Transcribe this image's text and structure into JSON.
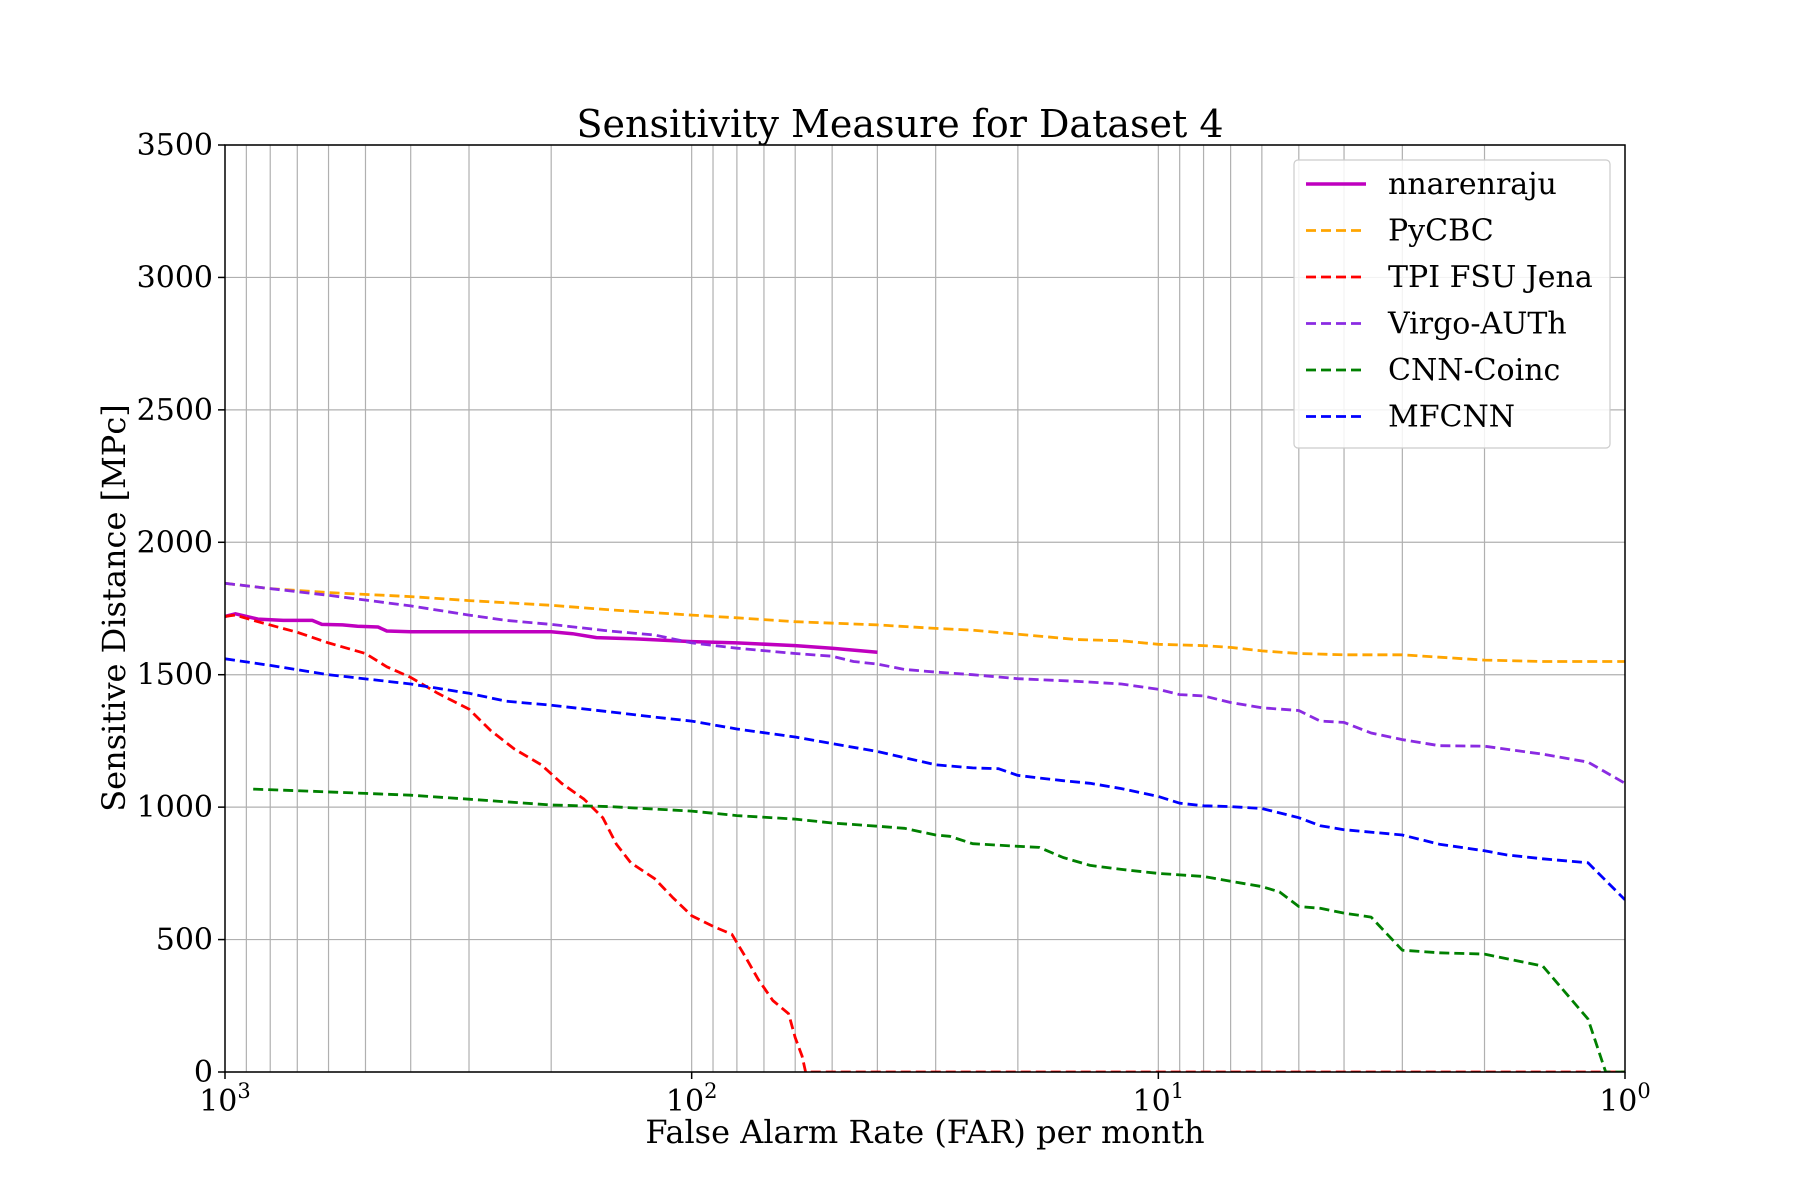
{
  "chart_data": {
    "type": "line",
    "title": "Sensitivity Measure for Dataset 4",
    "xlabel": "False Alarm Rate (FAR) per month",
    "ylabel": "Sensitive Distance [MPc]",
    "xscale": "log",
    "x_reversed": true,
    "xlim": [
      1000,
      1
    ],
    "ylim": [
      0,
      3500
    ],
    "grid": "on (major and minor x)",
    "legend_position": "top-right",
    "xticks": [
      {
        "base": "10",
        "exp": "3",
        "value": 1000
      },
      {
        "base": "10",
        "exp": "2",
        "value": 100
      },
      {
        "base": "10",
        "exp": "1",
        "value": 10
      },
      {
        "base": "10",
        "exp": "0",
        "value": 1
      }
    ],
    "yticks": [
      "0",
      "500",
      "1000",
      "1500",
      "2000",
      "2500",
      "3000",
      "3500"
    ],
    "series": [
      {
        "name": "nnarenraju",
        "color": "#bf00bf",
        "dash": "solid",
        "points": [
          [
            1000,
            1720
          ],
          [
            950,
            1730
          ],
          [
            850,
            1710
          ],
          [
            750,
            1705
          ],
          [
            650,
            1705
          ],
          [
            620,
            1690
          ],
          [
            560,
            1688
          ],
          [
            520,
            1683
          ],
          [
            470,
            1680
          ],
          [
            450,
            1665
          ],
          [
            400,
            1662
          ],
          [
            300,
            1662
          ],
          [
            200,
            1662
          ],
          [
            180,
            1655
          ],
          [
            160,
            1640
          ],
          [
            130,
            1635
          ],
          [
            100,
            1625
          ],
          [
            80,
            1620
          ],
          [
            60,
            1610
          ],
          [
            50,
            1600
          ],
          [
            40,
            1585
          ]
        ]
      },
      {
        "name": "PyCBC",
        "color": "#ffa500",
        "dash": "dashed",
        "points": [
          [
            1000,
            1845
          ],
          [
            800,
            1825
          ],
          [
            600,
            1810
          ],
          [
            400,
            1795
          ],
          [
            300,
            1780
          ],
          [
            200,
            1762
          ],
          [
            150,
            1745
          ],
          [
            100,
            1725
          ],
          [
            80,
            1715
          ],
          [
            60,
            1700
          ],
          [
            40,
            1688
          ],
          [
            30,
            1675
          ],
          [
            25,
            1668
          ],
          [
            20,
            1653
          ],
          [
            15,
            1633
          ],
          [
            12,
            1628
          ],
          [
            10,
            1615
          ],
          [
            8,
            1610
          ],
          [
            7,
            1603
          ],
          [
            6,
            1590
          ],
          [
            5,
            1580
          ],
          [
            4,
            1575
          ],
          [
            3,
            1575
          ],
          [
            2,
            1555
          ],
          [
            1.5,
            1550
          ],
          [
            1,
            1550
          ]
        ]
      },
      {
        "name": "TPI FSU Jena",
        "color": "#ff0000",
        "dash": "dashed",
        "points": [
          [
            1000,
            1720
          ],
          [
            950,
            1725
          ],
          [
            850,
            1700
          ],
          [
            700,
            1660
          ],
          [
            600,
            1620
          ],
          [
            500,
            1580
          ],
          [
            450,
            1530
          ],
          [
            400,
            1490
          ],
          [
            350,
            1430
          ],
          [
            300,
            1370
          ],
          [
            270,
            1290
          ],
          [
            240,
            1220
          ],
          [
            210,
            1160
          ],
          [
            190,
            1090
          ],
          [
            170,
            1030
          ],
          [
            155,
            960
          ],
          [
            145,
            860
          ],
          [
            135,
            790
          ],
          [
            120,
            730
          ],
          [
            110,
            660
          ],
          [
            100,
            590
          ],
          [
            90,
            550
          ],
          [
            82,
            520
          ],
          [
            77,
            440
          ],
          [
            72,
            350
          ],
          [
            67,
            270
          ],
          [
            62,
            220
          ],
          [
            60,
            130
          ],
          [
            58,
            60
          ],
          [
            57,
            0
          ],
          [
            1,
            0
          ]
        ]
      },
      {
        "name": "Virgo-AUTh",
        "color": "#8a2be2",
        "dash": "dashed",
        "points": [
          [
            1000,
            1845
          ],
          [
            800,
            1825
          ],
          [
            600,
            1800
          ],
          [
            400,
            1760
          ],
          [
            300,
            1725
          ],
          [
            250,
            1705
          ],
          [
            200,
            1690
          ],
          [
            150,
            1665
          ],
          [
            120,
            1650
          ],
          [
            100,
            1620
          ],
          [
            80,
            1600
          ],
          [
            60,
            1580
          ],
          [
            50,
            1570
          ],
          [
            45,
            1550
          ],
          [
            40,
            1540
          ],
          [
            35,
            1520
          ],
          [
            30,
            1510
          ],
          [
            25,
            1500
          ],
          [
            20,
            1485
          ],
          [
            15,
            1475
          ],
          [
            12,
            1465
          ],
          [
            10,
            1445
          ],
          [
            9,
            1425
          ],
          [
            8,
            1420
          ],
          [
            7,
            1395
          ],
          [
            6,
            1375
          ],
          [
            5,
            1365
          ],
          [
            4.5,
            1325
          ],
          [
            4,
            1320
          ],
          [
            3.5,
            1280
          ],
          [
            3,
            1255
          ],
          [
            2.5,
            1232
          ],
          [
            2,
            1230
          ],
          [
            1.5,
            1200
          ],
          [
            1.2,
            1170
          ],
          [
            1,
            1090
          ]
        ]
      },
      {
        "name": "CNN-Coinc",
        "color": "#008000",
        "dash": "dashed",
        "points": [
          [
            870,
            1068
          ],
          [
            700,
            1062
          ],
          [
            500,
            1052
          ],
          [
            400,
            1045
          ],
          [
            300,
            1030
          ],
          [
            200,
            1008
          ],
          [
            150,
            1002
          ],
          [
            100,
            985
          ],
          [
            80,
            968
          ],
          [
            60,
            955
          ],
          [
            50,
            940
          ],
          [
            40,
            928
          ],
          [
            35,
            920
          ],
          [
            30,
            895
          ],
          [
            28,
            890
          ],
          [
            25,
            862
          ],
          [
            20,
            852
          ],
          [
            18,
            848
          ],
          [
            16,
            810
          ],
          [
            14,
            780
          ],
          [
            12,
            765
          ],
          [
            10,
            750
          ],
          [
            8,
            738
          ],
          [
            7,
            720
          ],
          [
            6,
            700
          ],
          [
            5.5,
            680
          ],
          [
            5,
            625
          ],
          [
            4.5,
            618
          ],
          [
            4,
            600
          ],
          [
            3.5,
            585
          ],
          [
            3,
            460
          ],
          [
            2.5,
            450
          ],
          [
            2,
            445
          ],
          [
            1.5,
            400
          ],
          [
            1.2,
            200
          ],
          [
            1.1,
            0
          ],
          [
            1,
            0
          ]
        ]
      },
      {
        "name": "MFCNN",
        "color": "#0000ff",
        "dash": "dashed",
        "points": [
          [
            1000,
            1560
          ],
          [
            800,
            1535
          ],
          [
            600,
            1500
          ],
          [
            400,
            1465
          ],
          [
            300,
            1430
          ],
          [
            250,
            1400
          ],
          [
            200,
            1385
          ],
          [
            150,
            1360
          ],
          [
            120,
            1340
          ],
          [
            100,
            1325
          ],
          [
            80,
            1295
          ],
          [
            60,
            1265
          ],
          [
            50,
            1240
          ],
          [
            40,
            1210
          ],
          [
            30,
            1160
          ],
          [
            25,
            1148
          ],
          [
            22,
            1145
          ],
          [
            20,
            1120
          ],
          [
            18,
            1110
          ],
          [
            16,
            1100
          ],
          [
            14,
            1090
          ],
          [
            12,
            1070
          ],
          [
            10,
            1040
          ],
          [
            9,
            1015
          ],
          [
            8,
            1005
          ],
          [
            7,
            1002
          ],
          [
            6,
            995
          ],
          [
            5,
            960
          ],
          [
            4.5,
            930
          ],
          [
            4,
            915
          ],
          [
            3,
            895
          ],
          [
            2.5,
            860
          ],
          [
            2,
            835
          ],
          [
            1.8,
            820
          ],
          [
            1.5,
            805
          ],
          [
            1.2,
            790
          ],
          [
            1,
            650
          ]
        ]
      }
    ]
  }
}
